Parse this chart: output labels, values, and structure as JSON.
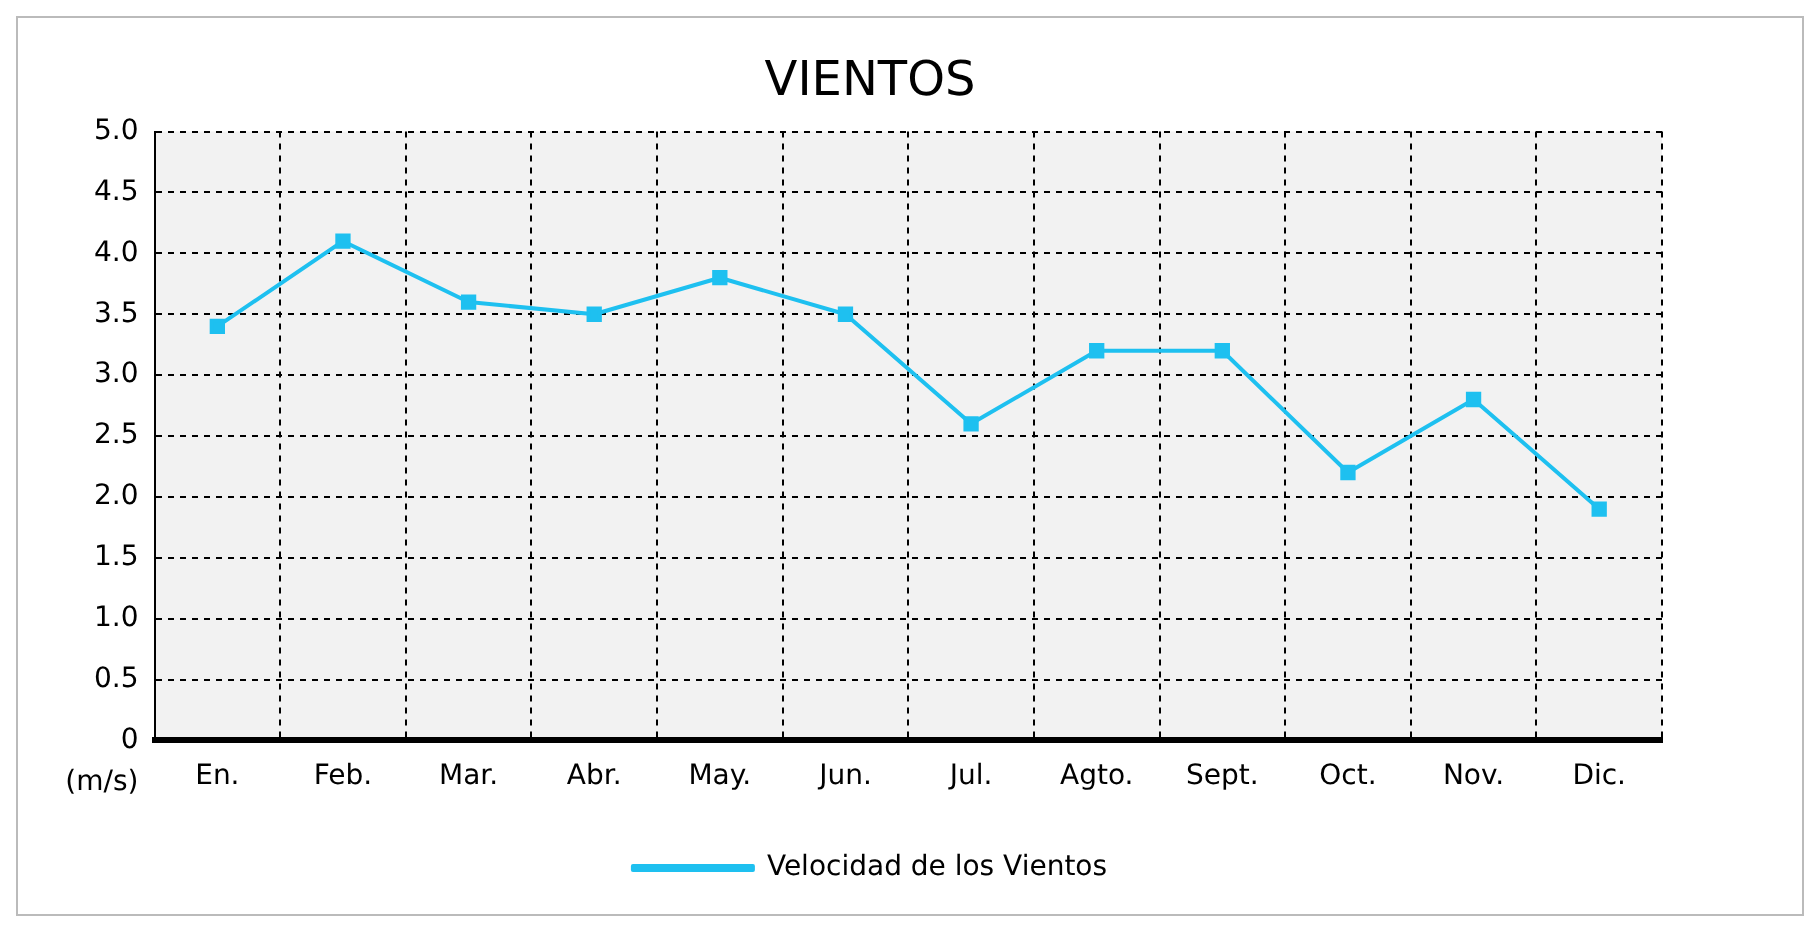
{
  "chart_data": {
    "type": "line",
    "title": "VIENTOS",
    "ylabel": "(m/s)",
    "categories": [
      "En.",
      "Feb.",
      "Mar.",
      "Abr.",
      "May.",
      "Jun.",
      "Jul.",
      "Agto.",
      "Sept.",
      "Oct.",
      "Nov.",
      "Dic."
    ],
    "series": [
      {
        "name": "Velocidad de los Vientos",
        "color": "#1ec0f0",
        "values": [
          3.4,
          4.1,
          3.6,
          3.5,
          3.8,
          3.5,
          2.6,
          3.2,
          3.2,
          2.2,
          2.8,
          1.9
        ]
      }
    ],
    "ylim": [
      0,
      5
    ],
    "yticks": [
      0,
      0.5,
      {
        "value": 1,
        "label": "1.0"
      },
      1.5,
      {
        "value": 2,
        "label": "2.0"
      },
      2.5,
      {
        "value": 3,
        "label": "3.0"
      },
      3.5,
      {
        "value": 4,
        "label": "4.0"
      },
      4.5,
      {
        "value": 5,
        "label": "5.0"
      }
    ],
    "grid": true,
    "legend": "bottom",
    "marker": "square",
    "line_style": "solid"
  }
}
